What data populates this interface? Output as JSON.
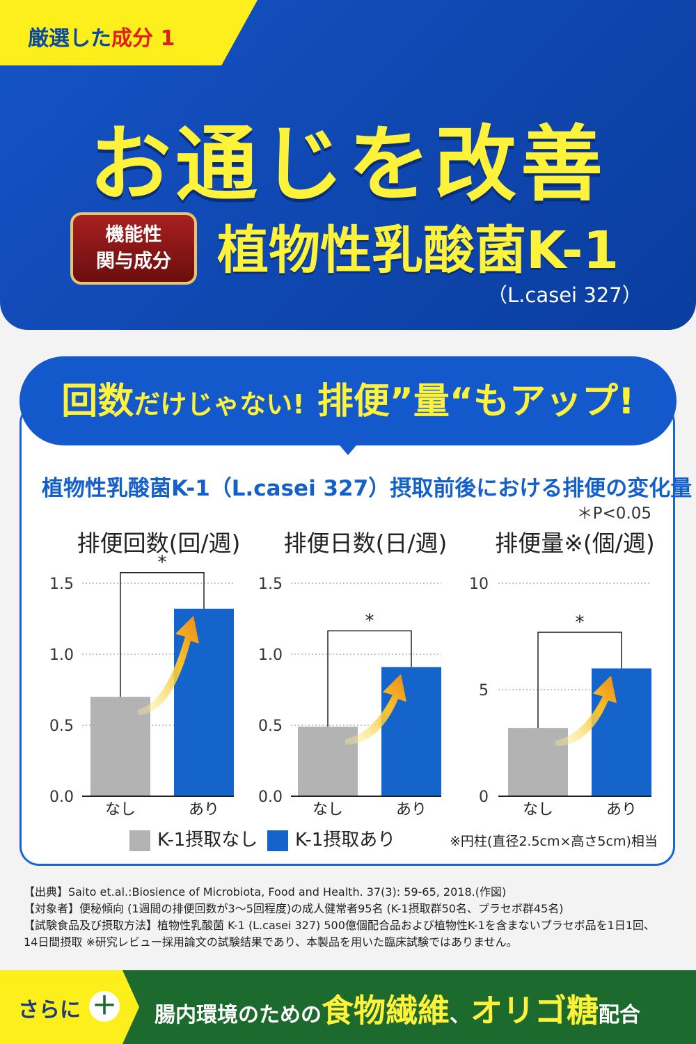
{
  "header": {
    "tag_prefix": "厳選した",
    "tag_highlight": "成分",
    "tag_number": "1",
    "headline": "お通じを改善",
    "badge_line1": "機能性",
    "badge_line2": "関与成分",
    "product_name": "植物性乳酸菌K-1",
    "product_strain": "（L.casei 327）"
  },
  "bubble": {
    "part1": "回数",
    "part2": "だけじゃない!",
    "part3": "排便”量“もアップ!"
  },
  "chart_section": {
    "title": "植物性乳酸菌K-1（L.casei 327）摂取前後における排便の変化量",
    "significance_note": "＊P<0.05"
  },
  "chart_data": [
    {
      "type": "bar",
      "title": "排便回数(回/週)",
      "categories": [
        "なし",
        "あり"
      ],
      "values": [
        0.7,
        1.32
      ],
      "ylim": [
        0,
        1.5
      ],
      "yticks": [
        "0.0",
        "0.5",
        "1.0",
        "1.5"
      ],
      "ytick_values": [
        0,
        0.5,
        1.0,
        1.5
      ],
      "significance": "*",
      "grid": true
    },
    {
      "type": "bar",
      "title": "排便日数(日/週)",
      "categories": [
        "なし",
        "あり"
      ],
      "values": [
        0.49,
        0.91
      ],
      "ylim": [
        0,
        1.5
      ],
      "yticks": [
        "0.0",
        "0.5",
        "1.0",
        "1.5"
      ],
      "ytick_values": [
        0,
        0.5,
        1.0,
        1.5
      ],
      "significance": "*",
      "grid": true
    },
    {
      "type": "bar",
      "title": "排便量※(個/週)",
      "categories": [
        "なし",
        "あり"
      ],
      "values": [
        3.2,
        6.0
      ],
      "ylim": [
        0,
        10
      ],
      "yticks": [
        "0",
        "5",
        "10"
      ],
      "ytick_values": [
        0,
        5,
        10
      ],
      "significance": "*",
      "grid": true
    }
  ],
  "legend": {
    "none_label": "K-1摂取なし",
    "with_label": "K-1摂取あり",
    "none_color": "#b3b3b3",
    "with_color": "#1464cc",
    "note": "※円柱(直径2.5cm×高さ5cm)相当"
  },
  "references": [
    "【出典】Saito et.al.:Biosience of Microbiota, Food and Health. 37(3): 59-65, 2018.(作図)",
    "【対象者】便秘傾向 (1週間の排便回数が3～5回程度)の成人健常者95名 (K-1摂取群50名、プラセボ群45名)",
    "【試験食品及び摂取方法】植物性乳酸菌 K-1 (L.casei 327) 500億個配合品および植物性K-1を含まないプラセボ品を1日1回、",
    "14日間摂取 ※研究レビュー採用論文の試験結果であり、本製品を用いた臨床試験ではありません。"
  ],
  "footer": {
    "left_label": "さらに",
    "plus_symbol": "＋",
    "text1": "腸内環境のための",
    "text2": "食物繊維",
    "text3": "、",
    "text4": "オリゴ糖",
    "text5": "配合"
  }
}
